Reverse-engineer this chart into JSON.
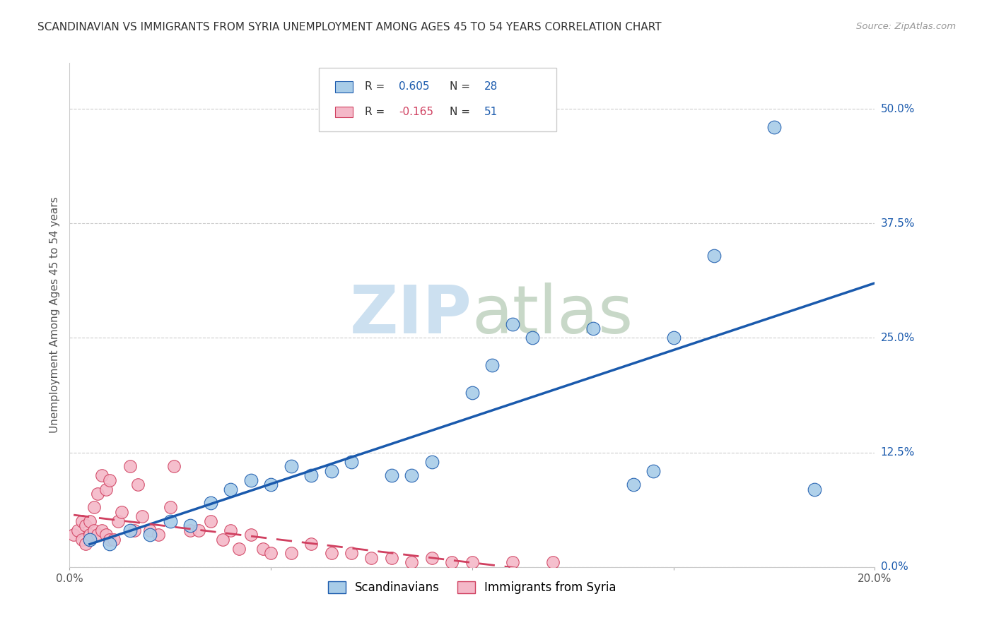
{
  "title": "SCANDINAVIAN VS IMMIGRANTS FROM SYRIA UNEMPLOYMENT AMONG AGES 45 TO 54 YEARS CORRELATION CHART",
  "source": "Source: ZipAtlas.com",
  "ylabel": "Unemployment Among Ages 45 to 54 years",
  "xlim": [
    0.0,
    0.2
  ],
  "ylim": [
    0.0,
    0.55
  ],
  "yticks": [
    0.0,
    0.125,
    0.25,
    0.375,
    0.5
  ],
  "ytick_labels": [
    "0.0%",
    "12.5%",
    "25.0%",
    "37.5%",
    "50.0%"
  ],
  "xticks": [
    0.0,
    0.05,
    0.1,
    0.15,
    0.2
  ],
  "xtick_labels": [
    "0.0%",
    "",
    "",
    "",
    "20.0%"
  ],
  "legend_labels": [
    "Scandinavians",
    "Immigrants from Syria"
  ],
  "R_scandinavian": 0.605,
  "N_scandinavian": 28,
  "R_syria": -0.165,
  "N_syria": 51,
  "blue_color": "#a8cce8",
  "pink_color": "#f4b8c8",
  "blue_line_color": "#1a5aad",
  "pink_line_color": "#d04060",
  "scandinavian_x": [
    0.005,
    0.01,
    0.015,
    0.02,
    0.025,
    0.03,
    0.035,
    0.04,
    0.045,
    0.05,
    0.055,
    0.06,
    0.065,
    0.07,
    0.08,
    0.085,
    0.09,
    0.1,
    0.105,
    0.11,
    0.115,
    0.13,
    0.14,
    0.145,
    0.15,
    0.16,
    0.175,
    0.185
  ],
  "scandinavian_y": [
    0.03,
    0.025,
    0.04,
    0.035,
    0.05,
    0.045,
    0.07,
    0.085,
    0.095,
    0.09,
    0.11,
    0.1,
    0.105,
    0.115,
    0.1,
    0.1,
    0.115,
    0.19,
    0.22,
    0.265,
    0.25,
    0.26,
    0.09,
    0.105,
    0.25,
    0.34,
    0.48,
    0.085
  ],
  "syria_x": [
    0.001,
    0.002,
    0.003,
    0.003,
    0.004,
    0.004,
    0.005,
    0.005,
    0.005,
    0.006,
    0.006,
    0.007,
    0.007,
    0.008,
    0.008,
    0.009,
    0.009,
    0.01,
    0.01,
    0.011,
    0.012,
    0.013,
    0.015,
    0.016,
    0.017,
    0.018,
    0.02,
    0.022,
    0.025,
    0.026,
    0.03,
    0.032,
    0.035,
    0.038,
    0.04,
    0.042,
    0.045,
    0.048,
    0.05,
    0.055,
    0.06,
    0.065,
    0.07,
    0.075,
    0.08,
    0.085,
    0.09,
    0.095,
    0.1,
    0.11,
    0.12
  ],
  "syria_y": [
    0.035,
    0.04,
    0.03,
    0.05,
    0.025,
    0.045,
    0.03,
    0.05,
    0.035,
    0.04,
    0.065,
    0.035,
    0.08,
    0.04,
    0.1,
    0.035,
    0.085,
    0.03,
    0.095,
    0.03,
    0.05,
    0.06,
    0.11,
    0.04,
    0.09,
    0.055,
    0.04,
    0.035,
    0.065,
    0.11,
    0.04,
    0.04,
    0.05,
    0.03,
    0.04,
    0.02,
    0.035,
    0.02,
    0.015,
    0.015,
    0.025,
    0.015,
    0.015,
    0.01,
    0.01,
    0.005,
    0.01,
    0.005,
    0.005,
    0.005,
    0.005
  ]
}
